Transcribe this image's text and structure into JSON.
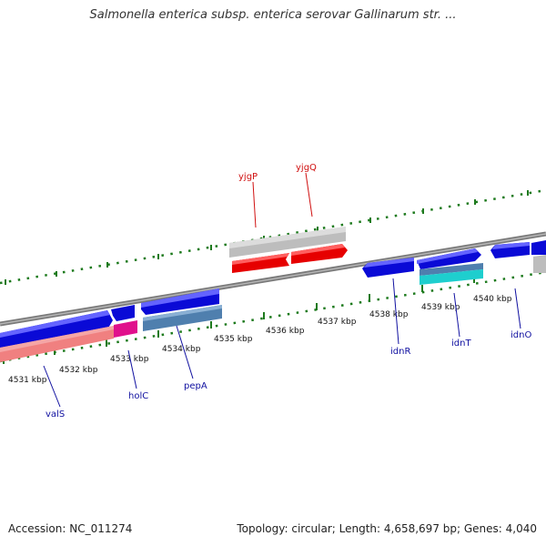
{
  "header": {
    "title": "Salmonella enterica subsp. enterica serovar Gallinarum str. ..."
  },
  "footer": {
    "accession": "Accession: NC_011274",
    "summary": "Topology: circular; Length: 4,658,697 bp; Genes: 4,040"
  },
  "ticks": [
    "4531 kbp",
    "4532 kbp",
    "4533 kbp",
    "4534 kbp",
    "4535 kbp",
    "4536 kbp",
    "4537 kbp",
    "4538 kbp",
    "4539 kbp",
    "4540 kbp"
  ],
  "colors": {
    "backbone": "#808080",
    "forward_cds": "#0a0ad6",
    "forward_cds_alt": "#4f7fae",
    "forward_cds_cyan": "#1ecece",
    "reverse_cds": "#e60000",
    "reverse_cds_light": "#f08080",
    "pseudogene_grey": "#bdbdbd",
    "magenta_feature": "#e0108c",
    "label_blue": "#1010a0",
    "label_red": "#d01010",
    "tick_green": "#1d7a1d"
  },
  "genes_below": [
    {
      "name": "valS"
    },
    {
      "name": "holC"
    },
    {
      "name": "pepA"
    },
    {
      "name": "idnR"
    },
    {
      "name": "idnT"
    },
    {
      "name": "idnO"
    }
  ],
  "genes_above": [
    {
      "name": "yjgP"
    },
    {
      "name": "yjgQ"
    }
  ]
}
